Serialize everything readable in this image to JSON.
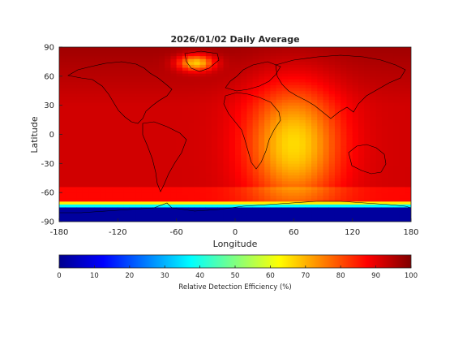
{
  "chart_data": {
    "type": "heatmap",
    "title": "2026/01/02 Daily Average",
    "xlabel": "Longitude",
    "ylabel": "Latitude",
    "xlim": [
      -180,
      180
    ],
    "ylim": [
      -90,
      90
    ],
    "xticks": [
      -180,
      -120,
      -60,
      0,
      60,
      120,
      180
    ],
    "yticks": [
      90,
      60,
      30,
      0,
      -30,
      -60,
      -90
    ],
    "colormap": "jet",
    "colorbar": {
      "label": "Relative Detection Efficiency (%)",
      "range": [
        0,
        100
      ],
      "ticks": [
        0,
        10,
        20,
        30,
        40,
        50,
        60,
        70,
        80,
        90,
        100
      ],
      "orientation": "horizontal",
      "placement": "bottom"
    },
    "grid": false,
    "field_description": [
      {
        "region": "lat -90 to -75",
        "value": 3
      },
      {
        "region": "lat -75 to -70",
        "value": 30
      },
      {
        "region": "lat -70 to -60",
        "value": 80
      },
      {
        "region": "high southern/ocean latitudes",
        "value": 88
      },
      {
        "region": "tropics Pacific",
        "value": 86
      },
      {
        "region": "Atlantic / Africa / Indian Ocean centre lon 40-80",
        "value": 68
      },
      {
        "region": "Arctic / Greenland",
        "value": 65
      },
      {
        "region": "northern high latitudes",
        "value": 92
      }
    ],
    "colors": {
      "dark_blue": "#00008f",
      "dark_red": "#800000"
    }
  }
}
